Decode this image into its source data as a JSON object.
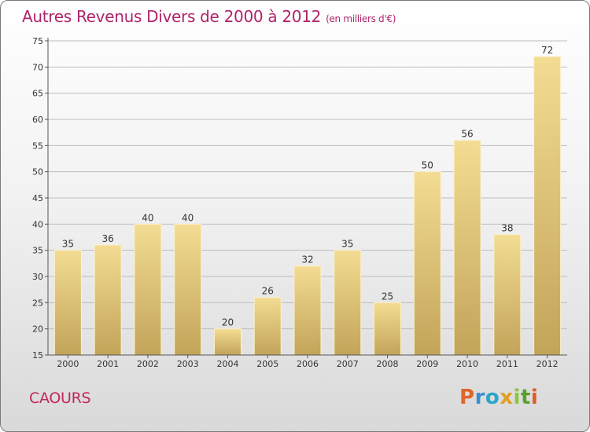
{
  "header": {
    "title": "Autres Revenus Divers de 2000 à 2012",
    "subtitle": "(en milliers d'€)"
  },
  "footer": {
    "commune": "CAOURS",
    "logo": {
      "letters": [
        "P",
        "r",
        "o",
        "x",
        "i",
        "t",
        "i"
      ],
      "colors": [
        "#e0662a",
        "#3a8fd0",
        "#2aa6c9",
        "#e0a020",
        "#8cc63f",
        "#5aa02c",
        "#e05a2a"
      ]
    }
  },
  "colors": {
    "bar_top": "#f3dc93",
    "bar_bottom": "#c2a45a",
    "bar_edge": "#fbf1cf",
    "grid": "#bdbdbd",
    "axis": "#555555",
    "title": "#b0246a"
  },
  "chart_data": {
    "type": "bar",
    "title": "Autres Revenus Divers de 2000 à 2012",
    "subtitle": "(en milliers d'€)",
    "xlabel": "",
    "ylabel": "",
    "categories": [
      "2000",
      "2001",
      "2002",
      "2003",
      "2004",
      "2005",
      "2006",
      "2007",
      "2008",
      "2009",
      "2010",
      "2011",
      "2012"
    ],
    "values": [
      35,
      36,
      40,
      40,
      20,
      26,
      32,
      35,
      25,
      50,
      56,
      38,
      72
    ],
    "ylim": [
      15,
      75
    ],
    "yticks": [
      15,
      20,
      25,
      30,
      35,
      40,
      45,
      50,
      55,
      60,
      65,
      70,
      75
    ],
    "grid": true,
    "legend": "none"
  }
}
